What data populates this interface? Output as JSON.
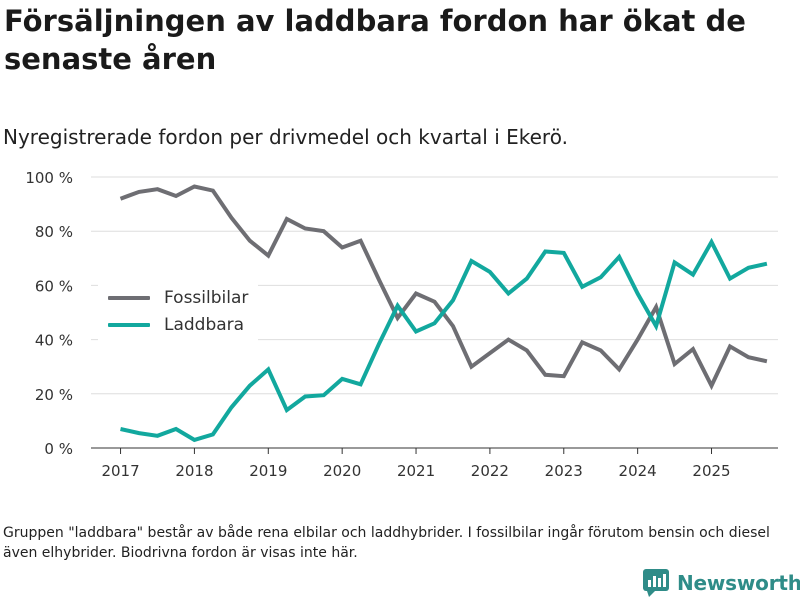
{
  "title": "Försäljningen av laddbara fordon har ökat de senaste åren",
  "subtitle": "Nyregistrerade fordon per drivmedel och kvartal i Ekerö.",
  "note": "Gruppen \"laddbara\" består av både rena elbilar och laddhybrider. I fossilbilar ingår förutom bensin och diesel även elhybrider. Biodrivna fordon är visas inte här.",
  "brand": {
    "name": "Newsworthy",
    "color": "#2f8c88",
    "icon": "newsworthy-logo-icon"
  },
  "chart_data": {
    "type": "line",
    "title": "Försäljningen av laddbara fordon har ökat de senaste åren",
    "subtitle": "Nyregistrerade fordon per drivmedel och kvartal i Ekerö.",
    "xlabel": "",
    "ylabel": "",
    "ylim": [
      0,
      100
    ],
    "xlim": [
      2016.6,
      2025.9
    ],
    "grid": "horizontal",
    "legend_position": "center-left",
    "yticks": [
      0,
      20,
      40,
      60,
      80,
      100
    ],
    "ytick_labels": [
      "0 %",
      "20 %",
      "40 %",
      "60 %",
      "80 %",
      "100 %"
    ],
    "xticks": [
      2017,
      2018,
      2019,
      2020,
      2021,
      2022,
      2023,
      2024,
      2025
    ],
    "xtick_labels": [
      "2017",
      "2018",
      "2019",
      "2020",
      "2021",
      "2022",
      "2023",
      "2024",
      "2025"
    ],
    "x": [
      2017.0,
      2017.25,
      2017.5,
      2017.75,
      2018.0,
      2018.25,
      2018.5,
      2018.75,
      2019.0,
      2019.25,
      2019.5,
      2019.75,
      2020.0,
      2020.25,
      2020.5,
      2020.75,
      2021.0,
      2021.25,
      2021.5,
      2021.75,
      2022.0,
      2022.25,
      2022.5,
      2022.75,
      2023.0,
      2023.25,
      2023.5,
      2023.75,
      2024.0,
      2024.25,
      2024.5,
      2024.75,
      2025.0,
      2025.25,
      2025.5,
      2025.75
    ],
    "series": [
      {
        "name": "Fossilbilar",
        "color": "#6e6e73",
        "values": [
          92,
          94.5,
          95.5,
          93,
          96.5,
          95,
          85,
          76.5,
          71,
          84.5,
          81,
          80,
          74,
          76.5,
          62,
          48,
          57,
          54,
          45,
          30,
          35,
          40,
          36,
          27,
          26.5,
          39,
          36,
          29,
          40,
          52,
          31,
          36.5,
          23,
          37.5,
          33.5,
          32
        ]
      },
      {
        "name": "Laddbara",
        "color": "#12a89e",
        "values": [
          7,
          5.5,
          4.5,
          7,
          3,
          5,
          15,
          23,
          29,
          14,
          19,
          19.5,
          25.5,
          23.5,
          38.5,
          52.5,
          43,
          46,
          54.5,
          69,
          65,
          57,
          62.5,
          72.5,
          72,
          59.5,
          63,
          70.5,
          57,
          45,
          68.5,
          64,
          76,
          62.5,
          66.5,
          68
        ]
      }
    ]
  }
}
